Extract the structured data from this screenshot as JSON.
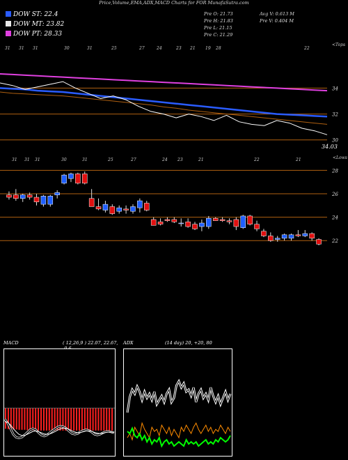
{
  "title": "Price,Volume,EMA,ADX,MACD Charts for FOR MunafaSutra.com",
  "colors": {
    "background": "#000000",
    "up_candle": "#1f5fff",
    "down_candle": "#e01010",
    "ema_blue": "#2a5cff",
    "ema_pink": "#e040e0",
    "gridline": "#b06010",
    "adx_white": "#ffffff",
    "adx_green": "#00ff00",
    "adx_orange": "#ff8c00",
    "macd_bars": "#ff2020"
  },
  "legend": [
    {
      "label": "DOW ST: 22.4",
      "color": "#2a5cff"
    },
    {
      "label": "DOW MT: 23.82",
      "color": "#e8e8e8"
    },
    {
      "label": "DOW PT: 28.33",
      "color": "#e040e0"
    }
  ],
  "stats": {
    "col1": [
      "Pre   O: 21.73",
      "Pre   H: 21.83",
      "Pre   L: 21.15",
      "Pre   C: 21.29"
    ],
    "col2": [
      "Avg V: 0.613  M",
      "Pre   V: 0.404  M"
    ]
  },
  "chart_data": [
    {
      "type": "line",
      "name": "EMA chart",
      "top_tick_labels": [
        "31",
        "31",
        "31",
        "30",
        "31",
        "25",
        "27",
        "24",
        "23",
        "21",
        "19",
        "28",
        "22"
      ],
      "corner_label": "<Tops",
      "y_tick_labels": [
        "34",
        "32",
        "30"
      ],
      "last_price_label": "34.03",
      "ylim": [
        29.5,
        36.5
      ],
      "series": [
        {
          "values": [
            33.7,
            33.6,
            33.55,
            33.5,
            33.45,
            33.4,
            33.3,
            33.2,
            33.1,
            33.0,
            32.9,
            32.8,
            32.7,
            32.55,
            32.45,
            32.3,
            32.2,
            32.1,
            32.0,
            31.9,
            31.8,
            31.7,
            31.6,
            31.5,
            31.4,
            31.3,
            31.2
          ]
        },
        {
          "values": [
            35.1,
            35.05,
            35.0,
            34.95,
            34.9,
            34.85,
            34.8,
            34.75,
            34.7,
            34.65,
            34.6,
            34.55,
            34.5,
            34.45,
            34.4,
            34.35,
            34.3,
            34.25,
            34.2,
            34.15,
            34.1,
            34.05,
            34.0,
            33.95,
            33.9,
            33.85,
            33.8
          ]
        },
        {
          "values": [
            34.0,
            33.95,
            33.9,
            33.8,
            33.75,
            33.7,
            33.6,
            33.5,
            33.4,
            33.3,
            33.2,
            33.1,
            33.0,
            32.9,
            32.8,
            32.7,
            32.6,
            32.5,
            32.4,
            32.3,
            32.2,
            32.1,
            32.0,
            31.95,
            31.9,
            31.85,
            31.8
          ]
        },
        {
          "values": [
            34.4,
            34.2,
            33.9,
            34.1,
            34.3,
            34.5,
            34.0,
            33.6,
            33.2,
            33.4,
            33.1,
            32.6,
            32.2,
            32.0,
            31.7,
            32.0,
            31.8,
            31.5,
            31.9,
            31.4,
            31.2,
            31.1,
            31.5,
            31.3,
            30.9,
            30.7,
            30.4
          ]
        }
      ]
    },
    {
      "type": "bar",
      "name": "Candlestick chart",
      "top_tick_labels": [
        "31",
        "31",
        "31",
        "30",
        "31",
        "25",
        "27",
        "24",
        "23",
        "21",
        "22",
        "21"
      ],
      "corner_label": "<Lows",
      "y_tick_labels": [
        "28",
        "26",
        "24",
        "22"
      ],
      "ylim": [
        21,
        28.5
      ],
      "candles": [
        {
          "o": 25.9,
          "h": 26.2,
          "l": 25.5,
          "c": 25.7
        },
        {
          "o": 25.9,
          "h": 26.4,
          "l": 25.4,
          "c": 25.6
        },
        {
          "o": 25.6,
          "h": 26.0,
          "l": 25.3,
          "c": 25.9
        },
        {
          "o": 25.9,
          "h": 26.1,
          "l": 25.5,
          "c": 25.7
        },
        {
          "o": 25.7,
          "h": 26.0,
          "l": 25.0,
          "c": 25.3
        },
        {
          "o": 25.1,
          "h": 25.9,
          "l": 24.9,
          "c": 25.8
        },
        {
          "o": 25.1,
          "h": 25.9,
          "l": 24.9,
          "c": 25.8
        },
        {
          "o": 25.9,
          "h": 26.3,
          "l": 25.6,
          "c": 26.1
        },
        {
          "o": 26.9,
          "h": 27.7,
          "l": 26.8,
          "c": 27.6
        },
        {
          "o": 27.3,
          "h": 27.8,
          "l": 27.0,
          "c": 27.7
        },
        {
          "o": 27.7,
          "h": 27.8,
          "l": 26.8,
          "c": 26.9
        },
        {
          "o": 27.7,
          "h": 27.9,
          "l": 26.8,
          "c": 26.9
        },
        {
          "o": 25.6,
          "h": 26.4,
          "l": 24.9,
          "c": 24.9
        },
        {
          "o": 24.9,
          "h": 25.6,
          "l": 24.6,
          "c": 24.7
        },
        {
          "o": 24.6,
          "h": 25.4,
          "l": 24.4,
          "c": 25.1
        },
        {
          "o": 24.9,
          "h": 25.1,
          "l": 24.2,
          "c": 24.3
        },
        {
          "o": 24.5,
          "h": 25.0,
          "l": 24.3,
          "c": 24.8
        },
        {
          "o": 24.7,
          "h": 25.0,
          "l": 24.3,
          "c": 24.6
        },
        {
          "o": 24.5,
          "h": 25.1,
          "l": 24.3,
          "c": 24.9
        },
        {
          "o": 24.8,
          "h": 25.6,
          "l": 24.4,
          "c": 25.4
        },
        {
          "o": 25.2,
          "h": 25.4,
          "l": 24.5,
          "c": 24.6
        },
        {
          "o": 23.8,
          "h": 24.0,
          "l": 23.3,
          "c": 23.3
        },
        {
          "o": 23.6,
          "h": 23.9,
          "l": 23.3,
          "c": 23.4
        },
        {
          "o": 23.8,
          "h": 24.0,
          "l": 23.6,
          "c": 23.7
        },
        {
          "o": 23.8,
          "h": 24.0,
          "l": 23.5,
          "c": 23.6
        },
        {
          "o": 23.5,
          "h": 23.9,
          "l": 23.2,
          "c": 23.5
        },
        {
          "o": 23.6,
          "h": 23.9,
          "l": 23.1,
          "c": 23.2
        },
        {
          "o": 23.4,
          "h": 23.6,
          "l": 22.9,
          "c": 23.0
        },
        {
          "o": 23.2,
          "h": 23.8,
          "l": 22.8,
          "c": 23.5
        },
        {
          "o": 23.2,
          "h": 24.1,
          "l": 23.0,
          "c": 23.9
        },
        {
          "o": 23.9,
          "h": 24.0,
          "l": 23.7,
          "c": 23.7
        },
        {
          "o": 23.8,
          "h": 24.0,
          "l": 23.6,
          "c": 23.7
        },
        {
          "o": 23.7,
          "h": 23.9,
          "l": 23.4,
          "c": 23.6
        },
        {
          "o": 23.8,
          "h": 24.0,
          "l": 22.9,
          "c": 23.2
        },
        {
          "o": 23.1,
          "h": 24.2,
          "l": 23.0,
          "c": 24.1
        },
        {
          "o": 24.1,
          "h": 24.2,
          "l": 23.3,
          "c": 23.4
        },
        {
          "o": 23.4,
          "h": 23.7,
          "l": 22.8,
          "c": 23.0
        },
        {
          "o": 22.8,
          "h": 23.0,
          "l": 22.3,
          "c": 22.4
        },
        {
          "o": 22.4,
          "h": 22.7,
          "l": 21.9,
          "c": 22.0
        },
        {
          "o": 22.1,
          "h": 22.4,
          "l": 21.9,
          "c": 22.2
        },
        {
          "o": 22.2,
          "h": 22.6,
          "l": 22.0,
          "c": 22.5
        },
        {
          "o": 22.2,
          "h": 22.6,
          "l": 22.0,
          "c": 22.5
        },
        {
          "o": 22.5,
          "h": 22.9,
          "l": 22.3,
          "c": 22.4
        },
        {
          "o": 22.4,
          "h": 22.9,
          "l": 22.3,
          "c": 22.6
        },
        {
          "o": 22.6,
          "h": 22.7,
          "l": 22.0,
          "c": 22.2
        },
        {
          "o": 22.1,
          "h": 22.2,
          "l": 21.6,
          "c": 21.7
        }
      ]
    },
    {
      "type": "bar",
      "name": "MACD",
      "title": "MACD",
      "params": "( 12,26,9 ) 22.07,  22.67,  -0.6",
      "hist": [
        -0.55,
        -0.56,
        -0.56,
        -0.57,
        -0.57,
        -0.58,
        -0.58,
        -0.58,
        -0.59,
        -0.59,
        -0.59,
        -0.6,
        -0.6,
        -0.6,
        -0.6,
        -0.6,
        -0.6,
        -0.6,
        -0.6,
        -0.6,
        -0.6,
        -0.6,
        -0.6,
        -0.6,
        -0.6,
        -0.6,
        -0.6,
        -0.6,
        -0.6,
        -0.6,
        -0.6,
        -0.6,
        -0.6,
        -0.6,
        -0.6,
        -0.6,
        -0.6,
        -0.6,
        -0.6,
        -0.6
      ],
      "series": [
        {
          "values": [
            -0.3,
            -0.4,
            -0.55,
            -0.7,
            -0.78,
            -0.8,
            -0.78,
            -0.72,
            -0.65,
            -0.58,
            -0.55,
            -0.58,
            -0.65,
            -0.72,
            -0.75,
            -0.72,
            -0.66,
            -0.6,
            -0.55,
            -0.5,
            -0.48,
            -0.5,
            -0.55,
            -0.62,
            -0.68,
            -0.7,
            -0.68,
            -0.63,
            -0.6,
            -0.58,
            -0.6,
            -0.64,
            -0.7,
            -0.72,
            -0.7,
            -0.66,
            -0.63,
            -0.62,
            -0.64,
            -0.66
          ]
        },
        {
          "values": [
            -0.35,
            -0.38,
            -0.45,
            -0.55,
            -0.63,
            -0.7,
            -0.73,
            -0.73,
            -0.7,
            -0.66,
            -0.62,
            -0.61,
            -0.63,
            -0.66,
            -0.69,
            -0.7,
            -0.69,
            -0.66,
            -0.62,
            -0.58,
            -0.55,
            -0.53,
            -0.54,
            -0.57,
            -0.61,
            -0.64,
            -0.66,
            -0.65,
            -0.63,
            -0.61,
            -0.61,
            -0.62,
            -0.65,
            -0.67,
            -0.68,
            -0.67,
            -0.65,
            -0.64,
            -0.64,
            -0.65
          ]
        }
      ],
      "ylim": [
        -1.2,
        1.5
      ]
    },
    {
      "type": "line",
      "name": "ADX",
      "title": "ADX",
      "params": "(14  day) 20,  +20,  80",
      "series": [
        {
          "values": [
            40,
            55,
            62,
            58,
            65,
            60,
            52,
            60,
            54,
            58,
            52,
            60,
            48,
            52,
            56,
            50,
            58,
            62,
            50,
            54,
            66,
            70,
            64,
            68,
            60,
            62,
            56,
            64,
            50,
            58,
            62,
            54,
            58,
            52,
            64,
            56,
            50,
            56,
            48,
            54,
            60,
            52,
            58
          ]
        },
        {
          "values": [
            16,
            20,
            14,
            26,
            22,
            18,
            30,
            24,
            20,
            16,
            26,
            22,
            24,
            18,
            28,
            24,
            20,
            26,
            18,
            24,
            20,
            16,
            26,
            22,
            28,
            24,
            20,
            26,
            30,
            24,
            20,
            24,
            28,
            22,
            26,
            20,
            24,
            22,
            28,
            24,
            20,
            26,
            22
          ]
        },
        {
          "values": [
            22,
            20,
            25,
            18,
            16,
            20,
            14,
            18,
            12,
            16,
            10,
            14,
            12,
            16,
            8,
            12,
            14,
            10,
            12,
            8,
            10,
            12,
            10,
            8,
            14,
            10,
            12,
            10,
            12,
            8,
            10,
            12,
            14,
            10,
            12,
            10,
            14,
            12,
            16,
            14,
            12,
            14,
            18
          ]
        }
      ],
      "ylim": [
        0,
        100
      ]
    }
  ]
}
